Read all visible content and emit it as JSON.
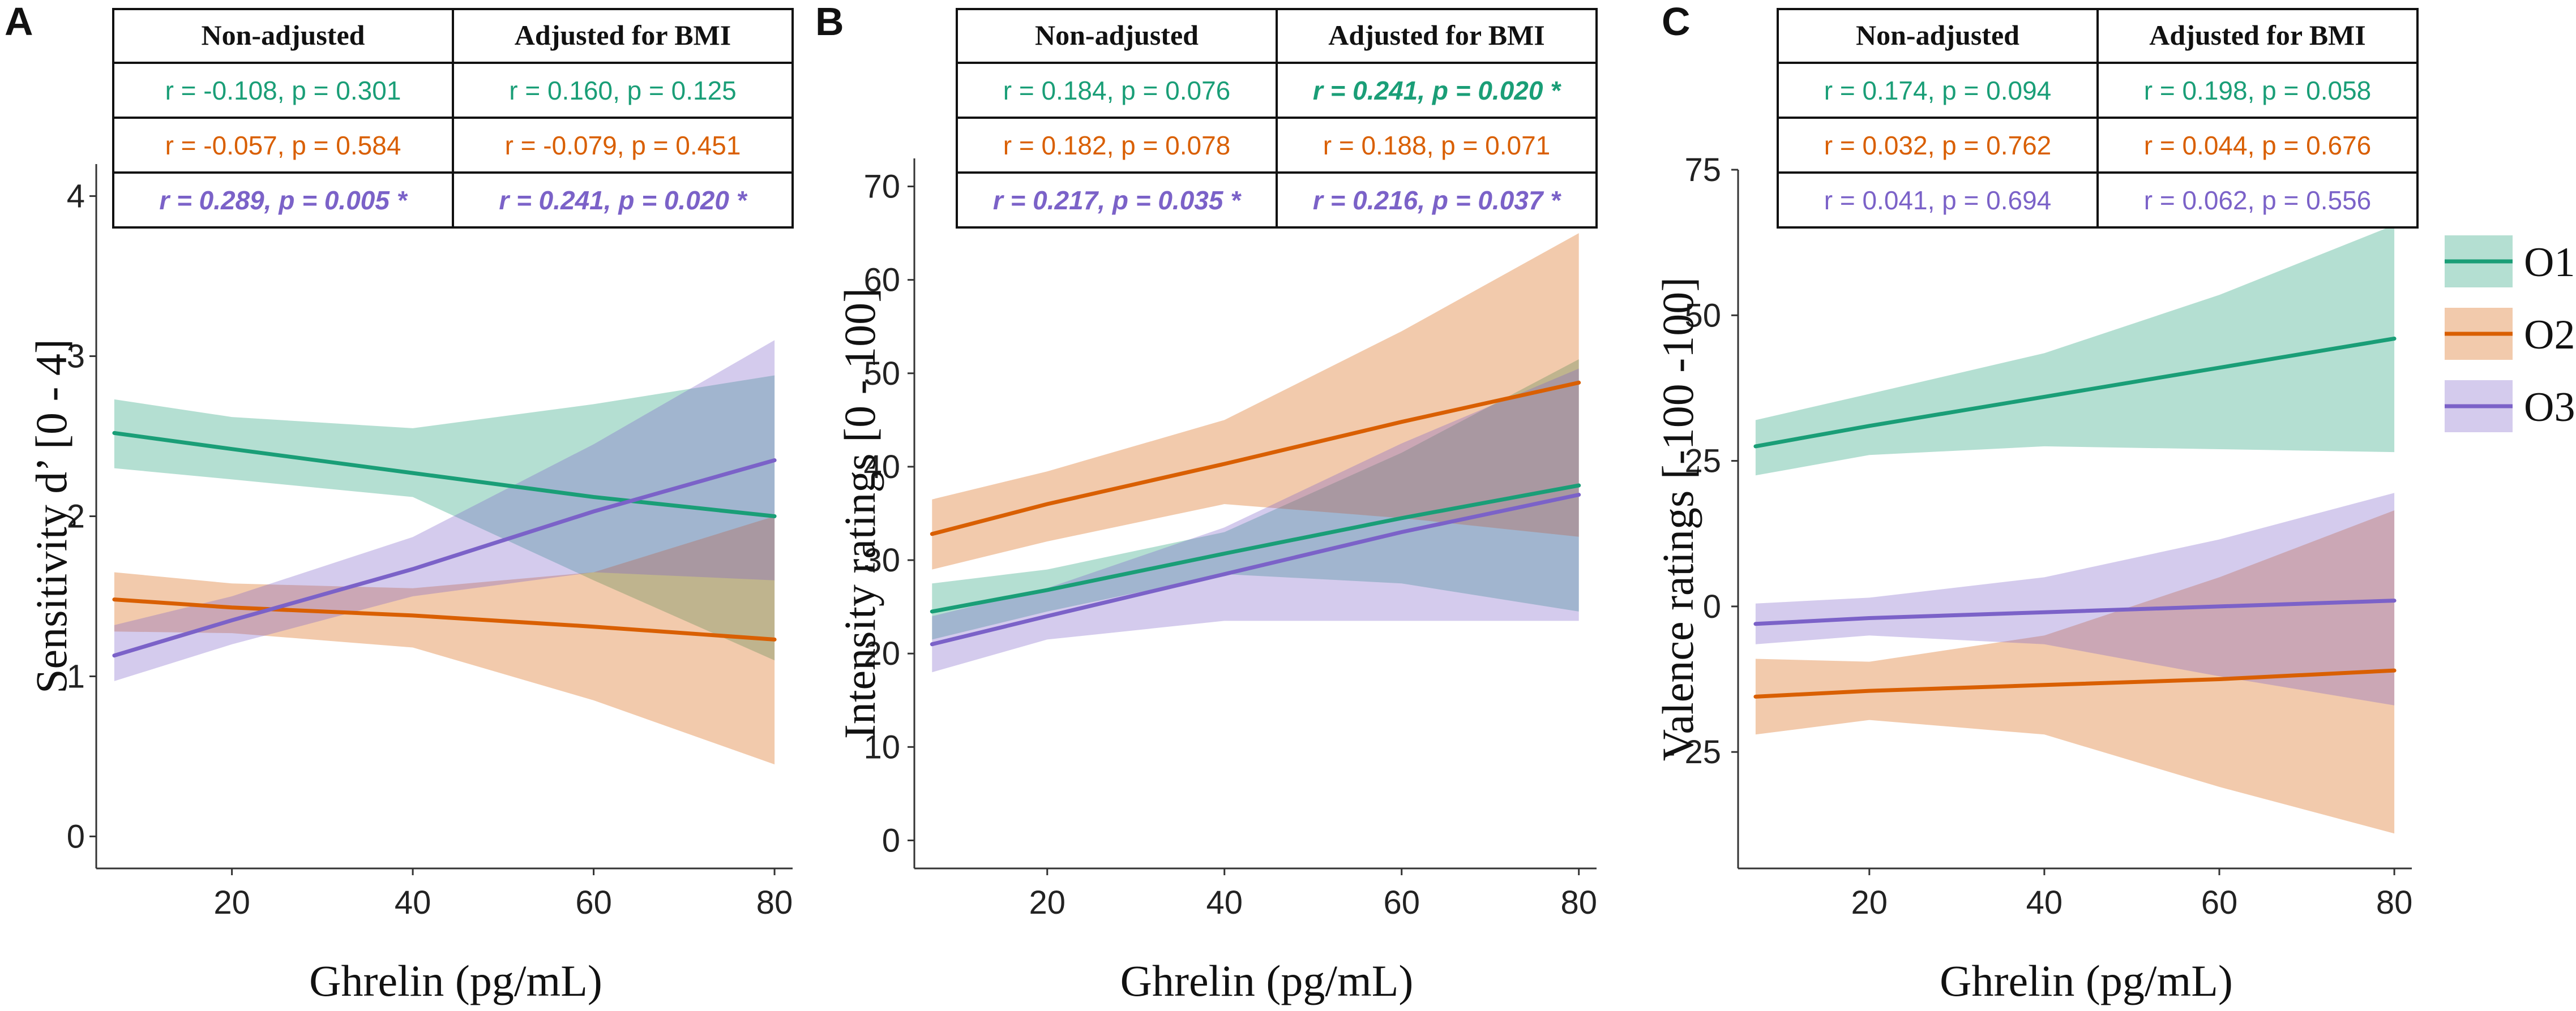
{
  "colors": {
    "O1": "#1a9e77",
    "O2": "#d95f02",
    "O3": "#7b62c8",
    "axis": "#333333",
    "text": "#222222"
  },
  "legend": {
    "items": [
      {
        "key": "O1",
        "label": "O1"
      },
      {
        "key": "O2",
        "label": "O2"
      },
      {
        "key": "O3",
        "label": "O3"
      }
    ]
  },
  "chart_data": [
    {
      "type": "line",
      "panel": "A",
      "xlabel": "Ghrelin (pg/mL)",
      "ylabel": "Sensitivity d’ [0 - 4]",
      "xlim": [
        5,
        82
      ],
      "ylim": [
        -0.2,
        4.2
      ],
      "xticks": [
        20,
        40,
        60,
        80
      ],
      "yticks": [
        0,
        1,
        2,
        3,
        4
      ],
      "ytick_labels": [
        "0",
        "1",
        "2",
        "3",
        "4"
      ],
      "table": {
        "headers": [
          "Non-adjusted",
          "Adjusted for BMI"
        ],
        "rows": [
          {
            "series": "O1",
            "cells": [
              {
                "text": "r = -0.108, p = 0.301",
                "sig": false
              },
              {
                "text": "r = 0.160, p = 0.125",
                "sig": false
              }
            ]
          },
          {
            "series": "O2",
            "cells": [
              {
                "text": "r = -0.057, p = 0.584",
                "sig": false
              },
              {
                "text": "r = -0.079, p = 0.451",
                "sig": false
              }
            ]
          },
          {
            "series": "O3",
            "cells": [
              {
                "text": "r = 0.289, p = 0.005 *",
                "sig": true
              },
              {
                "text": "r = 0.241, p = 0.020 *",
                "sig": true
              }
            ]
          }
        ]
      },
      "series": [
        {
          "name": "O1",
          "x": [
            7,
            20,
            40,
            60,
            80
          ],
          "y": [
            2.52,
            2.42,
            2.27,
            2.12,
            2.0
          ],
          "lower": [
            2.3,
            2.23,
            2.12,
            1.6,
            1.1
          ],
          "upper": [
            2.73,
            2.62,
            2.55,
            2.7,
            2.88
          ]
        },
        {
          "name": "O2",
          "x": [
            7,
            20,
            40,
            60,
            80
          ],
          "y": [
            1.48,
            1.43,
            1.38,
            1.31,
            1.23
          ],
          "lower": [
            1.28,
            1.27,
            1.18,
            0.85,
            0.45
          ],
          "upper": [
            1.65,
            1.58,
            1.55,
            1.65,
            2.0
          ]
        },
        {
          "name": "O3",
          "x": [
            7,
            20,
            40,
            60,
            80
          ],
          "y": [
            1.13,
            1.35,
            1.67,
            2.03,
            2.35
          ],
          "lower": [
            0.97,
            1.2,
            1.5,
            1.65,
            1.6
          ],
          "upper": [
            1.32,
            1.5,
            1.87,
            2.45,
            3.1
          ]
        }
      ]
    },
    {
      "type": "line",
      "panel": "B",
      "xlabel": "Ghrelin (pg/mL)",
      "ylabel": "Intensity ratings [0 - 100]",
      "xlim": [
        5,
        82
      ],
      "ylim": [
        -3,
        73
      ],
      "xticks": [
        20,
        40,
        60,
        80
      ],
      "yticks": [
        0,
        10,
        20,
        30,
        40,
        50,
        60,
        70
      ],
      "ytick_labels": [
        "0",
        "10",
        "20",
        "30",
        "40",
        "50",
        "60",
        "70"
      ],
      "table": {
        "headers": [
          "Non-adjusted",
          "Adjusted for BMI"
        ],
        "rows": [
          {
            "series": "O1",
            "cells": [
              {
                "text": "r = 0.184, p = 0.076",
                "sig": false
              },
              {
                "text": "r = 0.241, p = 0.020 *",
                "sig": true
              }
            ]
          },
          {
            "series": "O2",
            "cells": [
              {
                "text": "r = 0.182, p = 0.078",
                "sig": false
              },
              {
                "text": "r = 0.188, p = 0.071",
                "sig": false
              }
            ]
          },
          {
            "series": "O3",
            "cells": [
              {
                "text": "r = 0.217, p = 0.035 *",
                "sig": true
              },
              {
                "text": "r = 0.216, p = 0.037 *",
                "sig": true
              }
            ]
          }
        ]
      },
      "series": [
        {
          "name": "O1",
          "x": [
            7,
            20,
            40,
            60,
            80
          ],
          "y": [
            24.5,
            26.8,
            30.7,
            34.5,
            38.0
          ],
          "lower": [
            21.5,
            24.5,
            28.5,
            27.5,
            24.5
          ],
          "upper": [
            27.5,
            29.0,
            33.0,
            41.5,
            51.5
          ]
        },
        {
          "name": "O2",
          "x": [
            7,
            20,
            40,
            60,
            80
          ],
          "y": [
            32.8,
            36.0,
            40.3,
            44.8,
            49.0
          ],
          "lower": [
            29.0,
            32.0,
            36.0,
            34.5,
            32.5
          ],
          "upper": [
            36.5,
            39.5,
            45.0,
            54.5,
            65.0
          ]
        },
        {
          "name": "O3",
          "x": [
            7,
            20,
            40,
            60,
            80
          ],
          "y": [
            21.0,
            24.0,
            28.5,
            33.0,
            37.0
          ],
          "lower": [
            18.0,
            21.5,
            23.5,
            23.5,
            23.5
          ],
          "upper": [
            24.0,
            27.0,
            33.5,
            42.5,
            50.5
          ]
        }
      ]
    },
    {
      "type": "line",
      "panel": "C",
      "xlabel": "Ghrelin (pg/mL)",
      "ylabel": "Valence ratings [-100 -100]",
      "xlim": [
        5,
        82
      ],
      "ylim": [
        -45,
        75
      ],
      "xticks": [
        20,
        40,
        60,
        80
      ],
      "yticks": [
        -25,
        0,
        25,
        50,
        75
      ],
      "ytick_labels": [
        "- 25",
        "0",
        "25",
        "50",
        "75"
      ],
      "table": {
        "headers": [
          "Non-adjusted",
          "Adjusted for BMI"
        ],
        "rows": [
          {
            "series": "O1",
            "cells": [
              {
                "text": "r = 0.174, p = 0.094",
                "sig": false
              },
              {
                "text": "r = 0.198, p = 0.058",
                "sig": false
              }
            ]
          },
          {
            "series": "O2",
            "cells": [
              {
                "text": "r = 0.032, p = 0.762",
                "sig": false
              },
              {
                "text": "r = 0.044, p = 0.676",
                "sig": false
              }
            ]
          },
          {
            "series": "O3",
            "cells": [
              {
                "text": "r = 0.041, p = 0.694",
                "sig": false
              },
              {
                "text": "r = 0.062, p = 0.556",
                "sig": false
              }
            ]
          }
        ]
      },
      "series": [
        {
          "name": "O1",
          "x": [
            7,
            20,
            40,
            60,
            80
          ],
          "y": [
            27.5,
            31.0,
            36.0,
            41.0,
            46.0
          ],
          "lower": [
            22.5,
            26.0,
            27.5,
            27.0,
            26.5
          ],
          "upper": [
            32.0,
            36.5,
            43.5,
            53.5,
            65.5
          ]
        },
        {
          "name": "O2",
          "x": [
            7,
            20,
            40,
            60,
            80
          ],
          "y": [
            -15.5,
            -14.5,
            -13.5,
            -12.5,
            -11.0
          ],
          "lower": [
            -22.0,
            -19.5,
            -22.0,
            -31.0,
            -39.0
          ],
          "upper": [
            -9.0,
            -9.5,
            -5.0,
            5.0,
            16.5
          ]
        },
        {
          "name": "O3",
          "x": [
            7,
            20,
            40,
            60,
            80
          ],
          "y": [
            -3.0,
            -2.0,
            -1.0,
            0.0,
            1.0
          ],
          "lower": [
            -6.5,
            -5.0,
            -6.5,
            -12.0,
            -17.0
          ],
          "upper": [
            0.5,
            1.5,
            5.0,
            11.5,
            19.5
          ]
        }
      ]
    }
  ]
}
